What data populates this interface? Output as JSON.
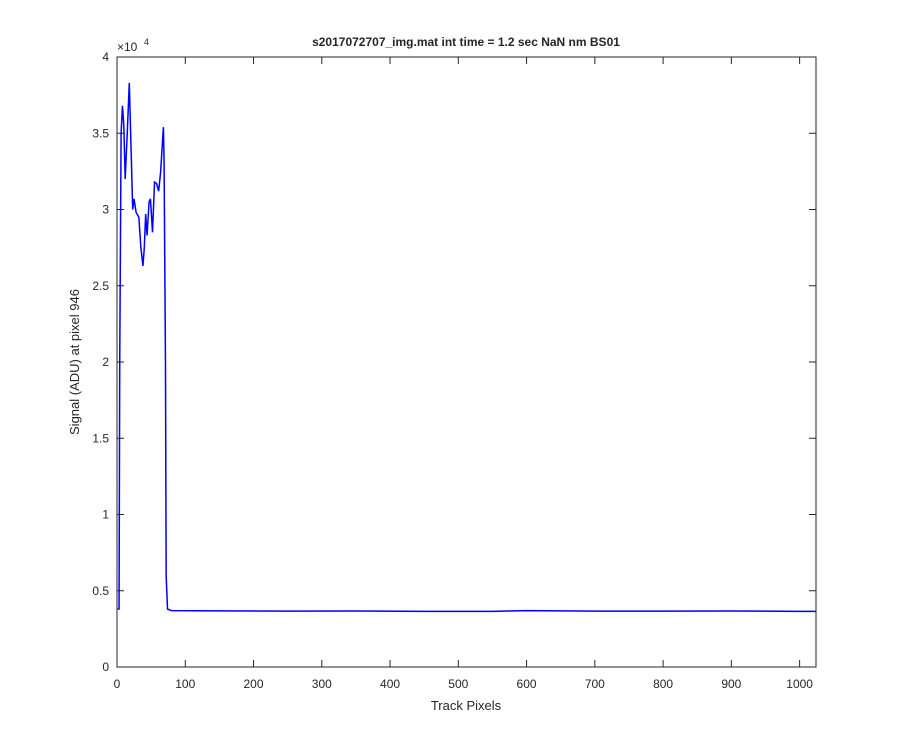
{
  "chart_data": {
    "type": "line",
    "title": "s2017072707_img.mat int time = 1.2 sec  NaN nm BS01",
    "x_label": "Track Pixels",
    "y_label": "Signal (ADU) at pixel 946",
    "y_exponent_base": "×10",
    "y_exponent_power": "4",
    "xlim": [
      0,
      1024
    ],
    "ylim": [
      0,
      40000
    ],
    "xticks": [
      0,
      100,
      200,
      300,
      400,
      500,
      600,
      700,
      800,
      900,
      1000
    ],
    "yticks": [
      {
        "value": 0,
        "label": "0"
      },
      {
        "value": 5000,
        "label": "0.5"
      },
      {
        "value": 10000,
        "label": "1"
      },
      {
        "value": 15000,
        "label": "1.5"
      },
      {
        "value": 20000,
        "label": "2"
      },
      {
        "value": 25000,
        "label": "2.5"
      },
      {
        "value": 30000,
        "label": "3"
      },
      {
        "value": 35000,
        "label": "3.5"
      },
      {
        "value": 40000,
        "label": "4"
      }
    ],
    "x": [
      1,
      3,
      4,
      6,
      8,
      10,
      12,
      15,
      18,
      20,
      23,
      25,
      28,
      32,
      35,
      38,
      40,
      42,
      44,
      47,
      49,
      52,
      55,
      58,
      61,
      64,
      66,
      68,
      69,
      71,
      72,
      74,
      80,
      150,
      250,
      350,
      450,
      550,
      600,
      650,
      700,
      800,
      900,
      1000,
      1024
    ],
    "series": [
      {
        "name": "signal",
        "color": "#0000ff",
        "values": [
          3800,
          3800,
          20000,
          35000,
          36800,
          35500,
          32000,
          35000,
          38300,
          35000,
          30000,
          30700,
          29800,
          29500,
          27500,
          26300,
          27500,
          29700,
          28300,
          30500,
          30700,
          28500,
          31800,
          31700,
          31200,
          32500,
          34000,
          35400,
          33000,
          20000,
          6000,
          3800,
          3700,
          3680,
          3660,
          3670,
          3650,
          3650,
          3700,
          3680,
          3660,
          3660,
          3670,
          3650,
          3650
        ]
      }
    ]
  }
}
